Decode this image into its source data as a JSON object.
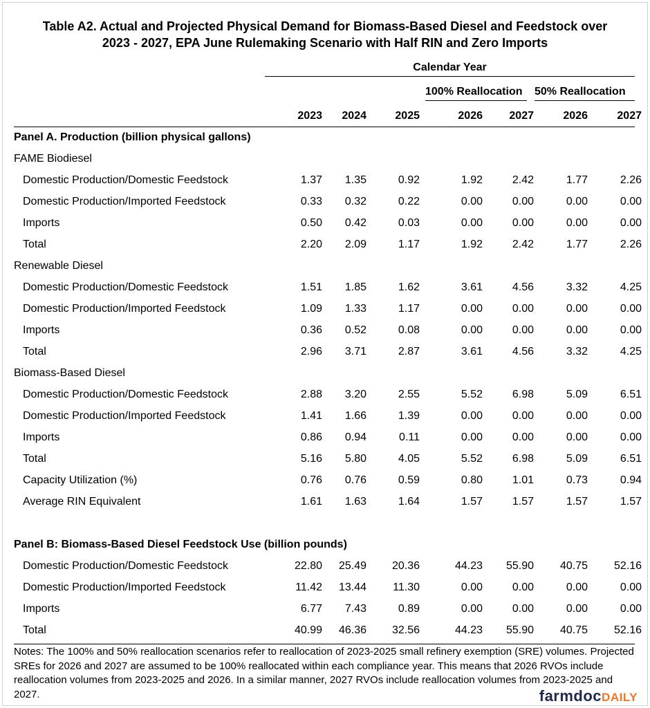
{
  "title_line1": "Table A2. Actual and Projected Physical Demand for Biomass-Based Diesel and Feedstock over",
  "title_line2": "2023 - 2027, EPA June Rulemaking Scenario with Half RIN and Zero Imports",
  "calendar_year": "Calendar Year",
  "scenario_100": "100% Reallocation",
  "scenario_50": "50% Reallocation",
  "years": [
    "2023",
    "2024",
    "2025",
    "2026",
    "2027",
    "2026",
    "2027"
  ],
  "rows": [
    {
      "type": "panel",
      "label": "Panel A. Production (billion physical gallons)"
    },
    {
      "type": "group",
      "label": "FAME Biodiesel"
    },
    {
      "type": "item",
      "label": "Domestic Production/Domestic Feedstock",
      "values": [
        "1.37",
        "1.35",
        "0.92",
        "1.92",
        "2.42",
        "1.77",
        "2.26"
      ]
    },
    {
      "type": "item",
      "label": "Domestic Production/Imported Feedstock",
      "values": [
        "0.33",
        "0.32",
        "0.22",
        "0.00",
        "0.00",
        "0.00",
        "0.00"
      ]
    },
    {
      "type": "item",
      "label": "Imports",
      "values": [
        "0.50",
        "0.42",
        "0.03",
        "0.00",
        "0.00",
        "0.00",
        "0.00"
      ]
    },
    {
      "type": "item",
      "label": "Total",
      "values": [
        "2.20",
        "2.09",
        "1.17",
        "1.92",
        "2.42",
        "1.77",
        "2.26"
      ]
    },
    {
      "type": "group",
      "label": "Renewable Diesel"
    },
    {
      "type": "item",
      "label": "Domestic Production/Domestic Feedstock",
      "values": [
        "1.51",
        "1.85",
        "1.62",
        "3.61",
        "4.56",
        "3.32",
        "4.25"
      ]
    },
    {
      "type": "item",
      "label": "Domestic Production/Imported Feedstock",
      "values": [
        "1.09",
        "1.33",
        "1.17",
        "0.00",
        "0.00",
        "0.00",
        "0.00"
      ]
    },
    {
      "type": "item",
      "label": "Imports",
      "values": [
        "0.36",
        "0.52",
        "0.08",
        "0.00",
        "0.00",
        "0.00",
        "0.00"
      ]
    },
    {
      "type": "item",
      "label": "Total",
      "values": [
        "2.96",
        "3.71",
        "2.87",
        "3.61",
        "4.56",
        "3.32",
        "4.25"
      ]
    },
    {
      "type": "group",
      "label": "Biomass-Based Diesel"
    },
    {
      "type": "item",
      "label": "Domestic Production/Domestic Feedstock",
      "values": [
        "2.88",
        "3.20",
        "2.55",
        "5.52",
        "6.98",
        "5.09",
        "6.51"
      ]
    },
    {
      "type": "item",
      "label": "Domestic Production/Imported Feedstock",
      "values": [
        "1.41",
        "1.66",
        "1.39",
        "0.00",
        "0.00",
        "0.00",
        "0.00"
      ]
    },
    {
      "type": "item",
      "label": "Imports",
      "values": [
        "0.86",
        "0.94",
        "0.11",
        "0.00",
        "0.00",
        "0.00",
        "0.00"
      ]
    },
    {
      "type": "item",
      "label": "Total",
      "values": [
        "5.16",
        "5.80",
        "4.05",
        "5.52",
        "6.98",
        "5.09",
        "6.51"
      ]
    },
    {
      "type": "item",
      "label": "Capacity Utilization (%)",
      "values": [
        "0.76",
        "0.76",
        "0.59",
        "0.80",
        "1.01",
        "0.73",
        "0.94"
      ]
    },
    {
      "type": "item",
      "label": "Average RIN Equivalent",
      "values": [
        "1.61",
        "1.63",
        "1.64",
        "1.57",
        "1.57",
        "1.57",
        "1.57"
      ]
    },
    {
      "type": "blank"
    },
    {
      "type": "panel",
      "label": "Panel B: Biomass-Based Diesel Feedstock Use (billion pounds)"
    },
    {
      "type": "item",
      "label": "Domestic Production/Domestic Feedstock",
      "values": [
        "22.80",
        "25.49",
        "20.36",
        "44.23",
        "55.90",
        "40.75",
        "52.16"
      ]
    },
    {
      "type": "item",
      "label": "Domestic Production/Imported Feedstock",
      "values": [
        "11.42",
        "13.44",
        "11.30",
        "0.00",
        "0.00",
        "0.00",
        "0.00"
      ]
    },
    {
      "type": "item",
      "label": "Imports",
      "values": [
        "6.77",
        "7.43",
        "0.89",
        "0.00",
        "0.00",
        "0.00",
        "0.00"
      ]
    },
    {
      "type": "item",
      "label": "Total",
      "values": [
        "40.99",
        "46.36",
        "32.56",
        "44.23",
        "55.90",
        "40.75",
        "52.16"
      ]
    }
  ],
  "notes": "Notes: The 100% and 50% reallocation scenarios refer to reallocation of 2023-2025 small refinery exemption (SRE) volumes. Projected SREs for 2026 and 2027 are assumed to be 100% reallocated within each compliance year.  This means that 2026 RVOs include reallocation volumes from 2023-2025 and 2026.  In a similar manner, 2027 RVOs include reallocation volumes from 2023-2025 and 2027.",
  "logo": {
    "part1": "farmdoc",
    "part2": "DAILY",
    "color1": "#1f2a4a",
    "color2": "#e8792b"
  }
}
